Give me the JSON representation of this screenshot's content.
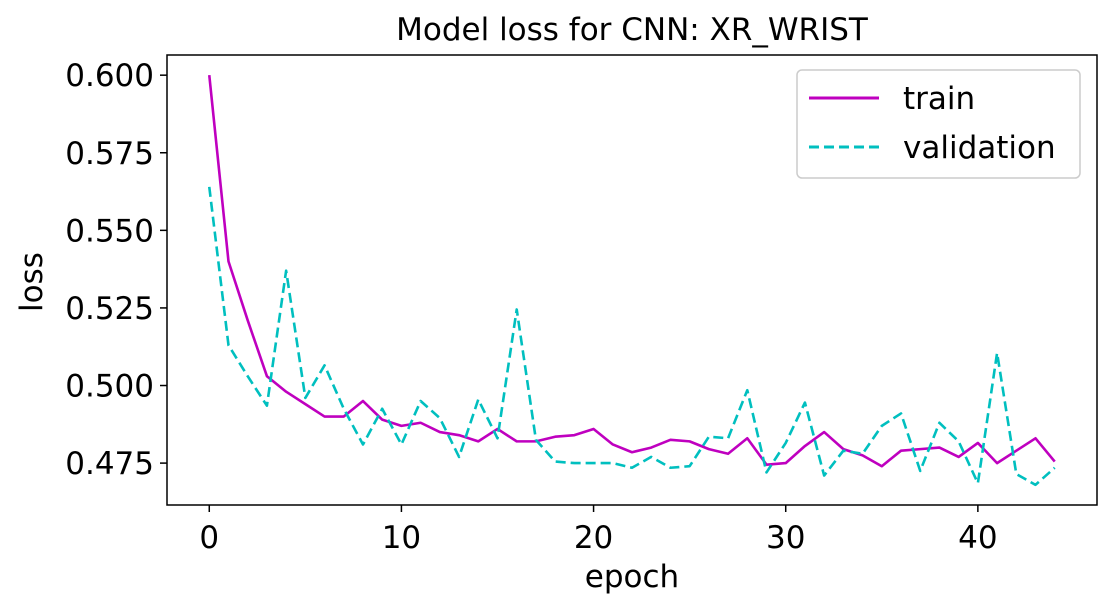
{
  "chart_data": {
    "type": "line",
    "title": "Model loss for CNN: XR_WRIST",
    "xlabel": "epoch",
    "ylabel": "loss",
    "xlim": [
      -2.2,
      46.2
    ],
    "ylim": [
      0.4615,
      0.6065
    ],
    "xticks": [
      0,
      10,
      20,
      30,
      40
    ],
    "yticks": [
      0.475,
      0.5,
      0.525,
      0.55,
      0.575,
      0.6
    ],
    "ytick_labels": [
      "0.475",
      "0.500",
      "0.525",
      "0.550",
      "0.575",
      "0.600"
    ],
    "grid": false,
    "legend_position": "top-right",
    "x": [
      0,
      1,
      2,
      3,
      4,
      5,
      6,
      7,
      8,
      9,
      10,
      11,
      12,
      13,
      14,
      15,
      16,
      17,
      18,
      19,
      20,
      21,
      22,
      23,
      24,
      25,
      26,
      27,
      28,
      29,
      30,
      31,
      32,
      33,
      34,
      35,
      36,
      37,
      38,
      39,
      40,
      41,
      42,
      43,
      44
    ],
    "series": [
      {
        "name": "train",
        "color": "#bf00bf",
        "style": "solid",
        "values": [
          0.6,
          0.54,
          0.521,
          0.503,
          0.498,
          0.494,
          0.49,
          0.49,
          0.495,
          0.489,
          0.487,
          0.488,
          0.485,
          0.484,
          0.482,
          0.486,
          0.482,
          0.482,
          0.4835,
          0.484,
          0.486,
          0.481,
          0.4785,
          0.48,
          0.4825,
          0.482,
          0.4795,
          0.478,
          0.483,
          0.4745,
          0.475,
          0.4805,
          0.485,
          0.4795,
          0.4775,
          0.474,
          0.479,
          0.4795,
          0.48,
          0.477,
          0.4815,
          0.475,
          0.479,
          0.483,
          0.4755
        ]
      },
      {
        "name": "validation",
        "color": "#00bfbf",
        "style": "dashed",
        "values": [
          0.564,
          0.513,
          0.503,
          0.4935,
          0.537,
          0.496,
          0.5065,
          0.4925,
          0.481,
          0.4925,
          0.481,
          0.495,
          0.4895,
          0.477,
          0.4955,
          0.483,
          0.5245,
          0.4825,
          0.4755,
          0.475,
          0.475,
          0.475,
          0.4735,
          0.477,
          0.4735,
          0.474,
          0.4835,
          0.483,
          0.4985,
          0.472,
          0.4815,
          0.4945,
          0.471,
          0.479,
          0.478,
          0.487,
          0.491,
          0.4725,
          0.488,
          0.482,
          0.4685,
          0.5105,
          0.4715,
          0.468,
          0.4735
        ]
      }
    ]
  }
}
